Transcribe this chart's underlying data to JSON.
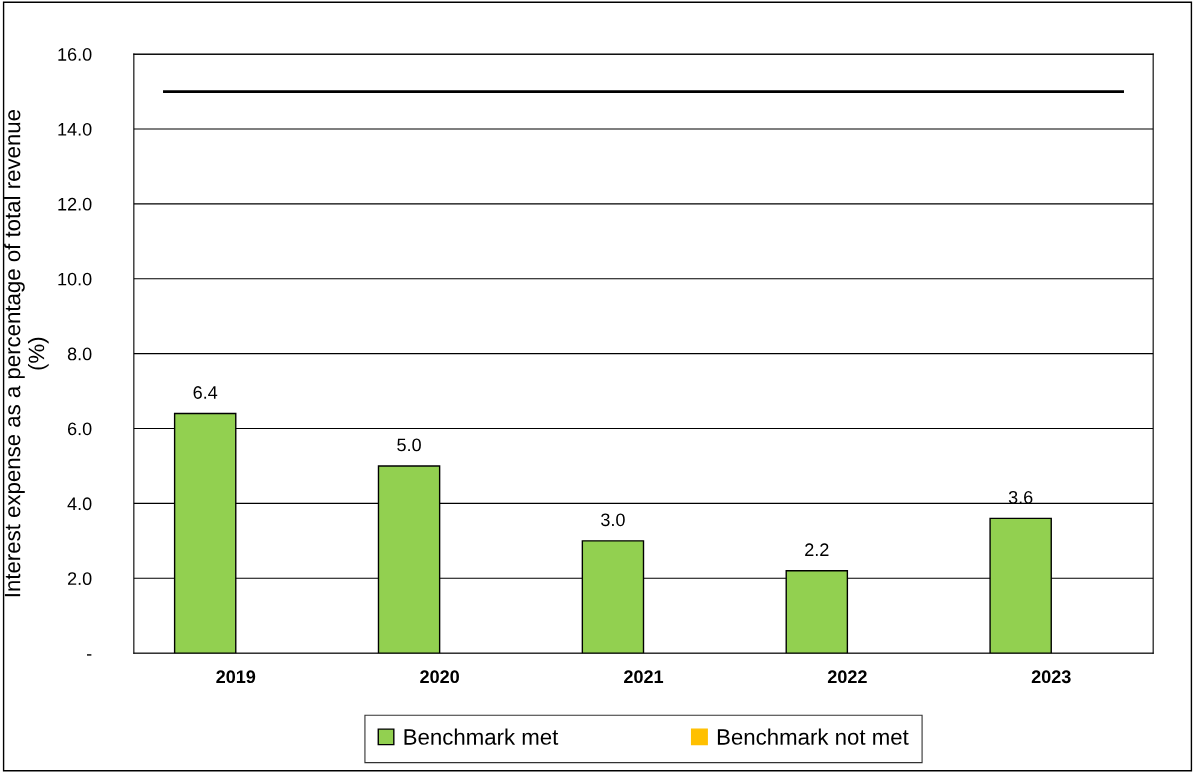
{
  "chart_data": {
    "type": "bar",
    "ylabel": "Interest expense as a percentage of total revenue\n(%)",
    "categories": [
      "2019",
      "2020",
      "2021",
      "2022",
      "2023"
    ],
    "series": [
      {
        "name": "Benchmark met",
        "color": "#92d050",
        "values": [
          6.4,
          5.0,
          3.0,
          2.2,
          3.6
        ],
        "value_labels": [
          "6.4",
          "5.0",
          "3.0",
          "2.2",
          "3.6"
        ]
      },
      {
        "name": "Benchmark not met",
        "color": "#ffc000",
        "values": [
          null,
          null,
          null,
          null,
          null
        ]
      }
    ],
    "ylim": [
      0,
      16
    ],
    "yticks": [
      {
        "value": 0,
        "label": "-"
      },
      {
        "value": 2,
        "label": "2.0"
      },
      {
        "value": 4,
        "label": "4.0"
      },
      {
        "value": 6,
        "label": "6.0"
      },
      {
        "value": 8,
        "label": "8.0"
      },
      {
        "value": 10,
        "label": "10.0"
      },
      {
        "value": 12,
        "label": "12.0"
      },
      {
        "value": 14,
        "label": "14.0"
      },
      {
        "value": 16,
        "label": "16.0"
      }
    ],
    "ref_lines": [
      {
        "axis": "y",
        "value": 15,
        "color": "#000000",
        "line_style": "solid"
      }
    ],
    "grid": "y",
    "legend": "bottom"
  }
}
